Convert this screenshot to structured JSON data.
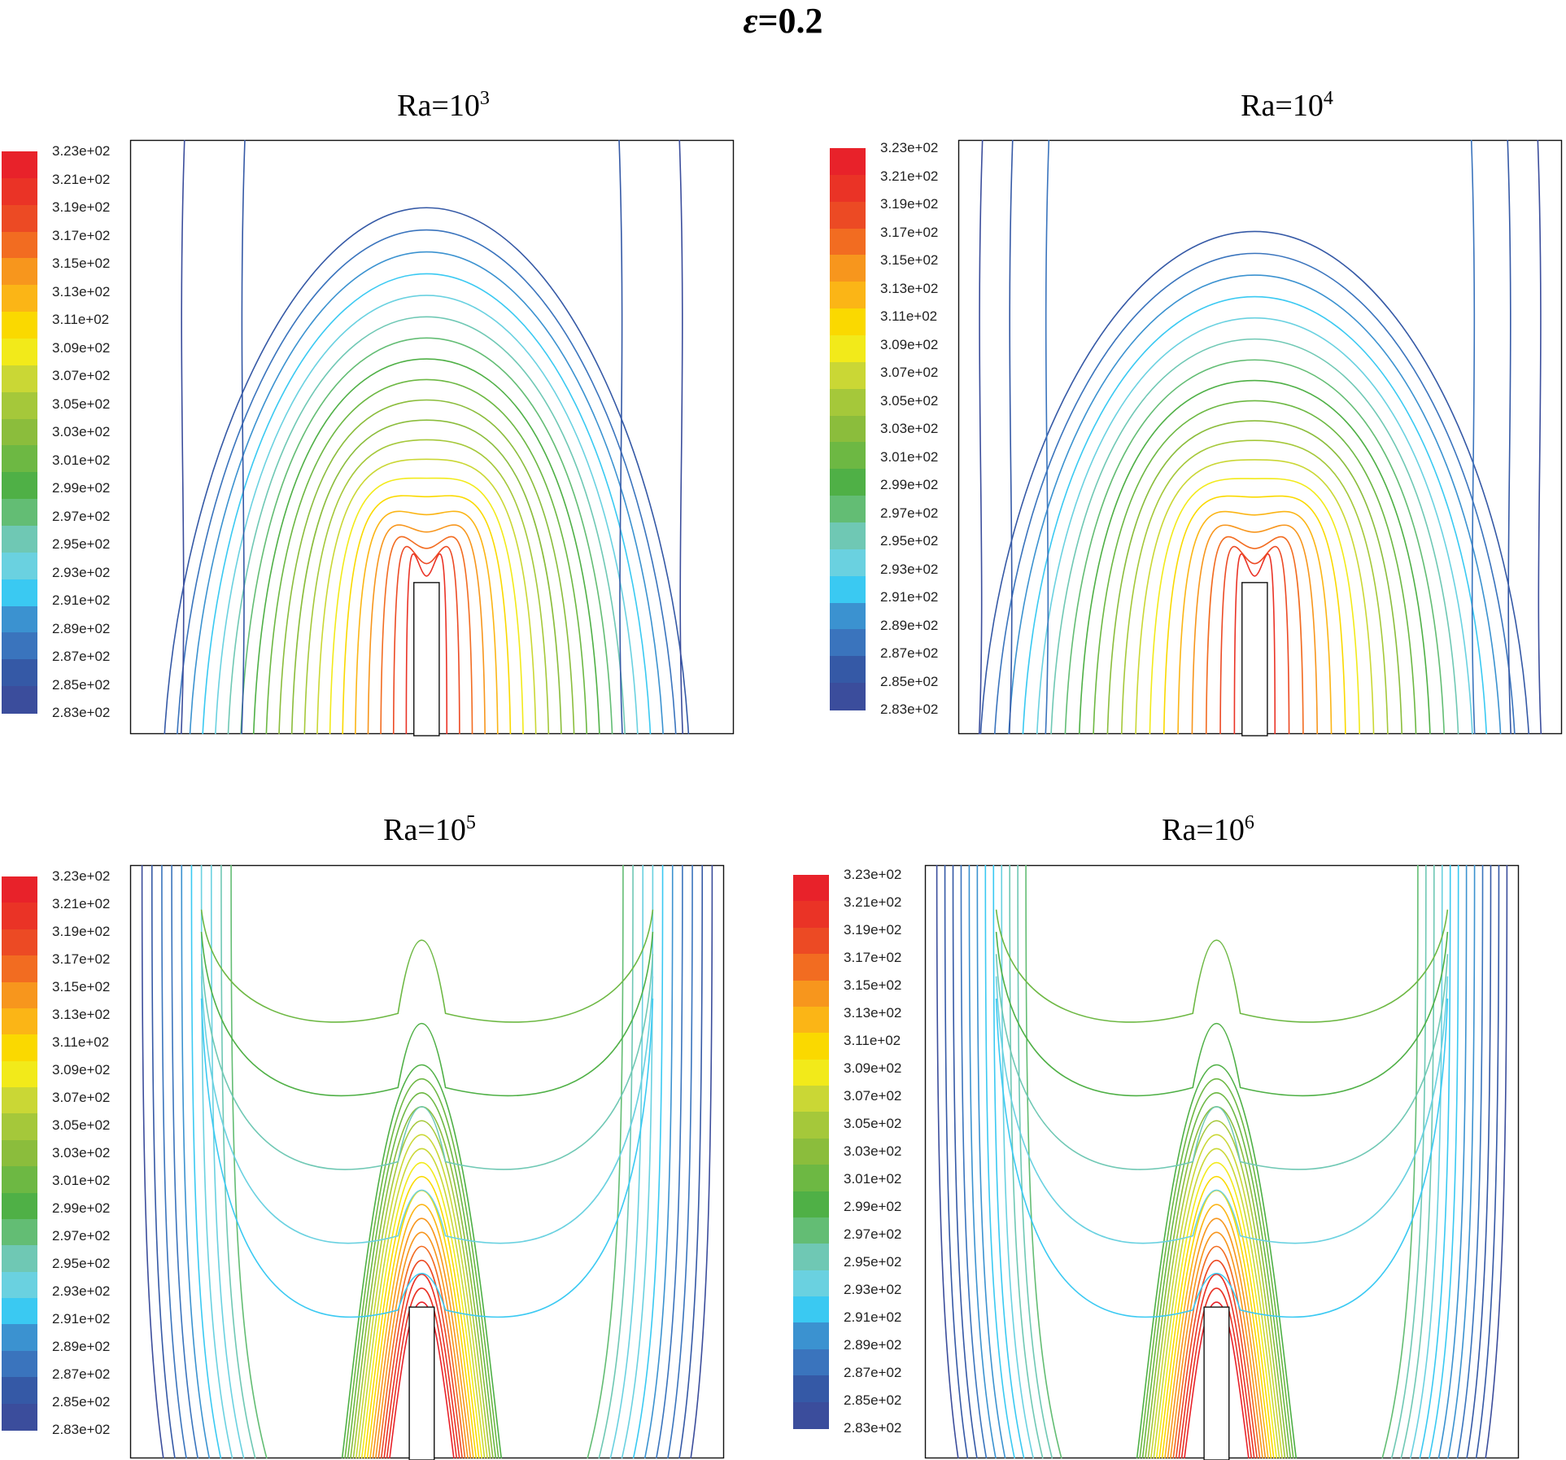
{
  "figure": {
    "epsilon_symbol": "ε",
    "epsilon_rest": "=0.2"
  },
  "panels": [
    {
      "id": "p1",
      "title_base": "Ra=10",
      "title_exp": "3"
    },
    {
      "id": "p2",
      "title_base": "Ra=10",
      "title_exp": "4"
    },
    {
      "id": "p3",
      "title_base": "Ra=10",
      "title_exp": "5"
    },
    {
      "id": "p4",
      "title_base": "Ra=10",
      "title_exp": "6"
    }
  ],
  "legend": {
    "labels": [
      "3.23e+02",
      "3.21e+02",
      "3.19e+02",
      "3.17e+02",
      "3.15e+02",
      "3.13e+02",
      "3.11e+02",
      "3.09e+02",
      "3.07e+02",
      "3.05e+02",
      "3.03e+02",
      "3.01e+02",
      "2.99e+02",
      "2.97e+02",
      "2.95e+02",
      "2.93e+02",
      "2.91e+02",
      "2.89e+02",
      "2.87e+02",
      "2.85e+02",
      "2.83e+02"
    ],
    "colors": [
      "#e8222a",
      "#ea3326",
      "#ec4a24",
      "#f26c21",
      "#f7961d",
      "#fbb516",
      "#fad900",
      "#f2ea1a",
      "#cad735",
      "#a5c83a",
      "#8bbd3c",
      "#6db843",
      "#4fb046",
      "#63bd74",
      "#6fc8b4",
      "#6ad1e0",
      "#3ac9f2",
      "#3b92d0",
      "#3a74bd",
      "#3559a6",
      "#3b4d9c"
    ]
  }
}
